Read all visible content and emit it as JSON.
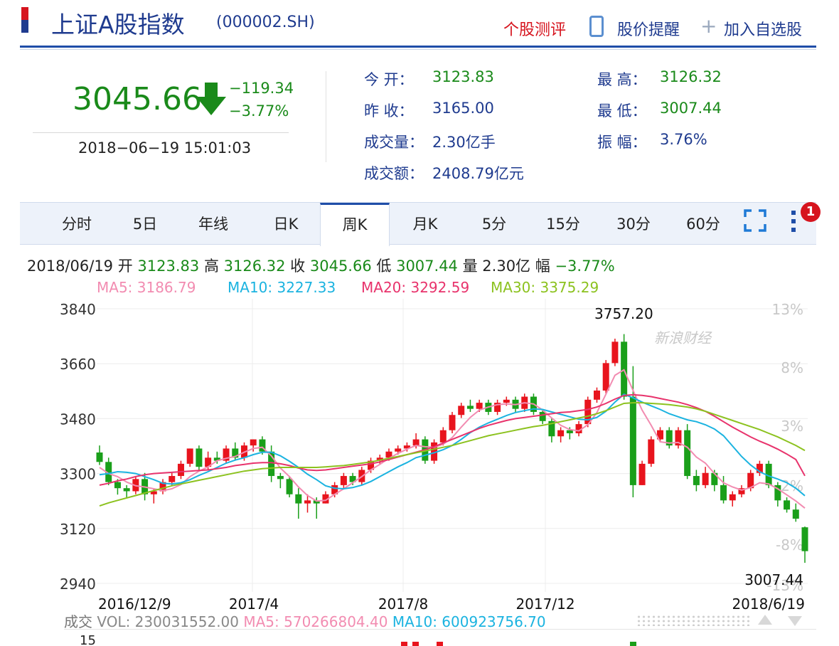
{
  "header": {
    "title": "上证A股指数",
    "code": "(000002.SH)",
    "actions": [
      "个股测评",
      "股价提醒",
      "加入自选股"
    ]
  },
  "quote": {
    "price": "3045.66",
    "change": "−119.34",
    "change_pct": "−3.77%",
    "time": "2018−06−19 15:01:03",
    "stats": [
      {
        "label": "今  开：",
        "value": "3123.83"
      },
      {
        "label": "最  高：",
        "value": "3126.32"
      },
      {
        "label": "昨  收：",
        "value": "3165.00"
      },
      {
        "label": "最  低：",
        "value": "3007.44"
      },
      {
        "label": "成交量：",
        "value": "2.30亿手"
      },
      {
        "label": "振  幅：",
        "value": "3.76%"
      },
      {
        "label": "成交额：",
        "value": "2408.79亿元"
      }
    ]
  },
  "tabs": [
    "分时",
    "5日",
    "年线",
    "日K",
    "周K",
    "月K",
    "5分",
    "15分",
    "30分",
    "60分"
  ],
  "active_tab": "周K",
  "badge_count": "1",
  "info_line": {
    "date": "2018/06/19",
    "open_label": "开",
    "open": "3123.83",
    "high_label": "高",
    "high": "3126.32",
    "close_label": "收",
    "close": "3045.66",
    "low_label": "低",
    "low": "3007.44",
    "vol_label": "量",
    "vol": "2.30亿",
    "amp_label": "幅",
    "amp": "−3.77%"
  },
  "ma_line": [
    {
      "text": "MA5: 3186.79",
      "color": "#f28cb1"
    },
    {
      "text": "MA10: 3227.33",
      "color": "#1bb3e0"
    },
    {
      "text": "MA20: 3292.59",
      "color": "#e8336c"
    },
    {
      "text": "MA30: 3375.29",
      "color": "#8cc21f"
    }
  ],
  "volume_line": {
    "label": "成交",
    "vol": "VOL: 230031552.00",
    "ma5": "MA5: 570266804.40",
    "ma10": "MA10: 600923756.70",
    "axis_top": "15"
  },
  "colors": {
    "up": "#e8141d",
    "down": "#1a9f1a",
    "accent": "#1f4ea8"
  },
  "chart_data": {
    "type": "candlestick",
    "y_ticks": [
      "3840",
      "3660",
      "3480",
      "3300",
      "3120",
      "2940"
    ],
    "ylim": [
      2940,
      3840
    ],
    "pct_ticks": [
      "13%",
      "8%",
      "3%",
      "-2%",
      "-8%",
      "-13%"
    ],
    "x_labels": [
      "2016/12/9",
      "2017/4",
      "2017/8",
      "2017/12",
      "2018/6/19"
    ],
    "max_label": "3757.20",
    "min_label": "3007.44",
    "watermark": "新浪财经",
    "candles": [
      [
        3369,
        3338,
        3392,
        3328
      ],
      [
        3338,
        3272,
        3352,
        3262
      ],
      [
        3272,
        3252,
        3282,
        3231
      ],
      [
        3252,
        3242,
        3262,
        3222
      ],
      [
        3242,
        3282,
        3292,
        3232
      ],
      [
        3282,
        3232,
        3302,
        3212
      ],
      [
        3232,
        3242,
        3252,
        3202
      ],
      [
        3242,
        3272,
        3282,
        3232
      ],
      [
        3272,
        3292,
        3302,
        3262
      ],
      [
        3292,
        3332,
        3342,
        3282
      ],
      [
        3332,
        3382,
        3382,
        3322
      ],
      [
        3382,
        3322,
        3392,
        3312
      ],
      [
        3322,
        3352,
        3372,
        3312
      ],
      [
        3352,
        3342,
        3372,
        3332
      ],
      [
        3342,
        3382,
        3392,
        3332
      ],
      [
        3382,
        3352,
        3402,
        3342
      ],
      [
        3352,
        3392,
        3402,
        3342
      ],
      [
        3392,
        3412,
        3412,
        3372
      ],
      [
        3412,
        3372,
        3422,
        3362
      ],
      [
        3372,
        3292,
        3392,
        3272
      ],
      [
        3292,
        3282,
        3302,
        3252
      ],
      [
        3282,
        3232,
        3292,
        3222
      ],
      [
        3232,
        3202,
        3252,
        3152
      ],
      [
        3202,
        3212,
        3232,
        3172
      ],
      [
        3212,
        3202,
        3222,
        3152
      ],
      [
        3202,
        3232,
        3242,
        3202
      ],
      [
        3232,
        3262,
        3272,
        3222
      ],
      [
        3262,
        3292,
        3302,
        3252
      ],
      [
        3292,
        3272,
        3302,
        3262
      ],
      [
        3272,
        3312,
        3322,
        3262
      ],
      [
        3312,
        3342,
        3352,
        3302
      ],
      [
        3342,
        3352,
        3362,
        3332
      ],
      [
        3352,
        3372,
        3382,
        3342
      ],
      [
        3372,
        3382,
        3392,
        3362
      ],
      [
        3382,
        3392,
        3402,
        3372
      ],
      [
        3392,
        3412,
        3432,
        3382
      ],
      [
        3412,
        3342,
        3422,
        3332
      ],
      [
        3342,
        3402,
        3412,
        3332
      ],
      [
        3402,
        3442,
        3452,
        3392
      ],
      [
        3442,
        3492,
        3502,
        3432
      ],
      [
        3492,
        3522,
        3532,
        3482
      ],
      [
        3522,
        3512,
        3542,
        3502
      ],
      [
        3512,
        3532,
        3542,
        3502
      ],
      [
        3532,
        3502,
        3542,
        3492
      ],
      [
        3502,
        3532,
        3542,
        3492
      ],
      [
        3532,
        3542,
        3552,
        3522
      ],
      [
        3542,
        3512,
        3552,
        3502
      ],
      [
        3512,
        3552,
        3562,
        3502
      ],
      [
        3552,
        3502,
        3562,
        3492
      ],
      [
        3502,
        3472,
        3512,
        3462
      ],
      [
        3472,
        3422,
        3482,
        3402
      ],
      [
        3422,
        3442,
        3452,
        3402
      ],
      [
        3442,
        3432,
        3452,
        3412
      ],
      [
        3432,
        3462,
        3472,
        3422
      ],
      [
        3462,
        3542,
        3552,
        3452
      ],
      [
        3542,
        3572,
        3582,
        3532
      ],
      [
        3572,
        3662,
        3672,
        3562
      ],
      [
        3662,
        3732,
        3742,
        3652
      ],
      [
        3732,
        3552,
        3757,
        3542
      ],
      [
        3552,
        3262,
        3652,
        3222
      ],
      [
        3262,
        3332,
        3342,
        3262
      ],
      [
        3332,
        3412,
        3422,
        3322
      ],
      [
        3412,
        3442,
        3452,
        3402
      ],
      [
        3442,
        3392,
        3452,
        3382
      ],
      [
        3392,
        3442,
        3452,
        3382
      ],
      [
        3442,
        3292,
        3462,
        3282
      ],
      [
        3292,
        3262,
        3312,
        3242
      ],
      [
        3262,
        3302,
        3322,
        3252
      ],
      [
        3302,
        3262,
        3312,
        3242
      ],
      [
        3262,
        3212,
        3292,
        3202
      ],
      [
        3212,
        3232,
        3242,
        3192
      ],
      [
        3232,
        3252,
        3262,
        3222
      ],
      [
        3252,
        3302,
        3312,
        3242
      ],
      [
        3302,
        3332,
        3342,
        3292
      ],
      [
        3332,
        3262,
        3342,
        3252
      ],
      [
        3262,
        3212,
        3272,
        3192
      ],
      [
        3212,
        3182,
        3222,
        3172
      ],
      [
        3182,
        3152,
        3202,
        3142
      ],
      [
        3123.83,
        3045.66,
        3126.32,
        3007.44
      ]
    ],
    "series": [
      {
        "name": "MA5",
        "color": "#f28cb1",
        "values": [
          3320,
          3300,
          3290,
          3272,
          3260,
          3256,
          3250,
          3244,
          3250,
          3264,
          3290,
          3308,
          3322,
          3342,
          3350,
          3356,
          3370,
          3382,
          3386,
          3358,
          3318,
          3290,
          3256,
          3228,
          3210,
          3212,
          3232,
          3250,
          3270,
          3290,
          3312,
          3330,
          3350,
          3366,
          3380,
          3392,
          3388,
          3386,
          3396,
          3418,
          3452,
          3484,
          3508,
          3518,
          3526,
          3528,
          3526,
          3532,
          3528,
          3508,
          3482,
          3458,
          3444,
          3440,
          3460,
          3500,
          3560,
          3622,
          3640,
          3572,
          3508,
          3458,
          3404,
          3400,
          3402,
          3386,
          3354,
          3334,
          3300,
          3270,
          3256,
          3246,
          3254,
          3270,
          3266,
          3250,
          3230,
          3210,
          3186.79
        ]
      },
      {
        "name": "MA10",
        "color": "#1bb3e0",
        "values": [
          3296,
          3300,
          3306,
          3304,
          3300,
          3290,
          3280,
          3268,
          3266,
          3270,
          3280,
          3294,
          3306,
          3320,
          3334,
          3344,
          3352,
          3362,
          3370,
          3370,
          3358,
          3340,
          3320,
          3298,
          3280,
          3260,
          3252,
          3250,
          3254,
          3262,
          3274,
          3290,
          3306,
          3322,
          3336,
          3352,
          3360,
          3368,
          3378,
          3392,
          3412,
          3434,
          3452,
          3466,
          3478,
          3490,
          3500,
          3506,
          3512,
          3510,
          3502,
          3494,
          3486,
          3478,
          3476,
          3484,
          3504,
          3534,
          3560,
          3548,
          3534,
          3522,
          3510,
          3496,
          3486,
          3476,
          3470,
          3460,
          3446,
          3424,
          3390,
          3356,
          3328,
          3306,
          3292,
          3282,
          3270,
          3252,
          3227.33
        ]
      },
      {
        "name": "MA20",
        "color": "#e8336c",
        "values": [
          3262,
          3268,
          3276,
          3282,
          3290,
          3296,
          3300,
          3302,
          3304,
          3306,
          3308,
          3310,
          3312,
          3316,
          3320,
          3326,
          3330,
          3334,
          3336,
          3336,
          3332,
          3326,
          3318,
          3312,
          3310,
          3312,
          3316,
          3320,
          3324,
          3328,
          3332,
          3338,
          3346,
          3354,
          3362,
          3370,
          3378,
          3388,
          3400,
          3412,
          3424,
          3436,
          3448,
          3458,
          3466,
          3474,
          3480,
          3484,
          3488,
          3492,
          3496,
          3500,
          3502,
          3506,
          3510,
          3518,
          3530,
          3544,
          3556,
          3558,
          3556,
          3552,
          3546,
          3540,
          3534,
          3526,
          3516,
          3504,
          3488,
          3470,
          3452,
          3436,
          3420,
          3406,
          3394,
          3380,
          3364,
          3346,
          3292.59
        ]
      },
      {
        "name": "MA30",
        "color": "#8cc21f",
        "values": [
          3194,
          3204,
          3212,
          3220,
          3228,
          3236,
          3244,
          3252,
          3260,
          3266,
          3272,
          3278,
          3284,
          3290,
          3296,
          3302,
          3308,
          3312,
          3316,
          3318,
          3320,
          3320,
          3320,
          3320,
          3320,
          3322,
          3324,
          3326,
          3330,
          3334,
          3338,
          3344,
          3350,
          3356,
          3362,
          3368,
          3374,
          3380,
          3386,
          3392,
          3400,
          3408,
          3416,
          3424,
          3430,
          3436,
          3442,
          3448,
          3454,
          3458,
          3464,
          3470,
          3476,
          3482,
          3488,
          3496,
          3506,
          3518,
          3530,
          3532,
          3532,
          3530,
          3528,
          3526,
          3522,
          3518,
          3512,
          3504,
          3494,
          3484,
          3474,
          3464,
          3454,
          3444,
          3432,
          3420,
          3406,
          3392,
          3375.29
        ]
      }
    ]
  }
}
